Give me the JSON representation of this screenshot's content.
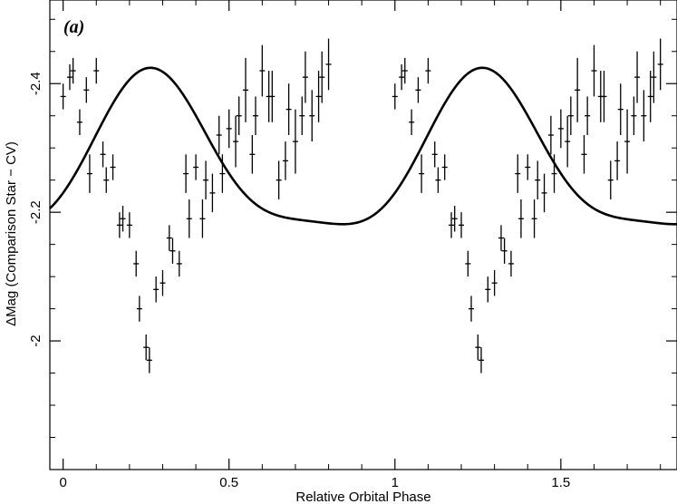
{
  "chart_data": {
    "type": "scatter",
    "panel_label": "(a)",
    "xlabel": "Relative Orbital Phase",
    "ylabel": "ΔMag (Comparison Star − CV)",
    "xlim": [
      -0.04,
      1.85
    ],
    "ylim": [
      -2.53,
      -1.8
    ],
    "y_inverted": true,
    "x_ticks": [
      0,
      0.5,
      1,
      1.5
    ],
    "x_tick_labels": [
      "0",
      "0.5",
      "1",
      "1.5"
    ],
    "y_ticks": [
      -2.0,
      -2.2,
      -2.4
    ],
    "y_tick_labels": [
      "-2",
      "-2.2",
      "-2.4"
    ],
    "grid": false,
    "series": [
      {
        "kind": "points_with_errorbars",
        "x": [
          0.0,
          0.02,
          0.03,
          0.05,
          0.07,
          0.08,
          0.1,
          0.12,
          0.13,
          0.15,
          0.17,
          0.18,
          0.2,
          0.22,
          0.23,
          0.25,
          0.26,
          0.28,
          0.3,
          0.32,
          0.33,
          0.35,
          0.37,
          0.38,
          0.4,
          0.42,
          0.43,
          0.45,
          0.47,
          0.48,
          0.5,
          0.52,
          0.53,
          0.55,
          0.57,
          0.58,
          0.6,
          0.62,
          0.63,
          0.65,
          0.67,
          0.68,
          0.7,
          0.72,
          0.73,
          0.75,
          0.77,
          0.78,
          0.8
        ],
        "y": [
          -2.38,
          -2.41,
          -2.42,
          -2.34,
          -2.39,
          -2.26,
          -2.42,
          -2.29,
          -2.25,
          -2.27,
          -2.18,
          -2.19,
          -2.18,
          -2.12,
          -2.05,
          -1.99,
          -1.97,
          -2.08,
          -2.09,
          -2.16,
          -2.14,
          -2.12,
          -2.26,
          -2.19,
          -2.27,
          -2.19,
          -2.25,
          -2.23,
          -2.32,
          -2.26,
          -2.33,
          -2.31,
          -2.35,
          -2.39,
          -2.29,
          -2.35,
          -2.42,
          -2.38,
          -2.38,
          -2.25,
          -2.28,
          -2.36,
          -2.31,
          -2.35,
          -2.41,
          -2.35,
          -2.38,
          -2.41,
          -2.43
        ],
        "yerr": [
          0.02,
          0.02,
          0.02,
          0.02,
          0.02,
          0.03,
          0.02,
          0.02,
          0.02,
          0.02,
          0.02,
          0.02,
          0.02,
          0.02,
          0.02,
          0.02,
          0.02,
          0.02,
          0.02,
          0.02,
          0.02,
          0.02,
          0.03,
          0.03,
          0.02,
          0.03,
          0.03,
          0.03,
          0.03,
          0.03,
          0.03,
          0.04,
          0.03,
          0.05,
          0.03,
          0.03,
          0.04,
          0.04,
          0.04,
          0.03,
          0.03,
          0.04,
          0.05,
          0.03,
          0.04,
          0.04,
          0.04,
          0.04,
          0.04
        ]
      },
      {
        "kind": "fit_curve",
        "x_start": -0.04,
        "x_end": 1.85,
        "mean": -2.275,
        "harmonics": [
          {
            "n": 1,
            "amplitude": 0.1199,
            "peak_phase": 0.27
          },
          {
            "n": 2,
            "amplitude": 0.0299,
            "peak_phase": 0.2567
          }
        ]
      }
    ]
  }
}
